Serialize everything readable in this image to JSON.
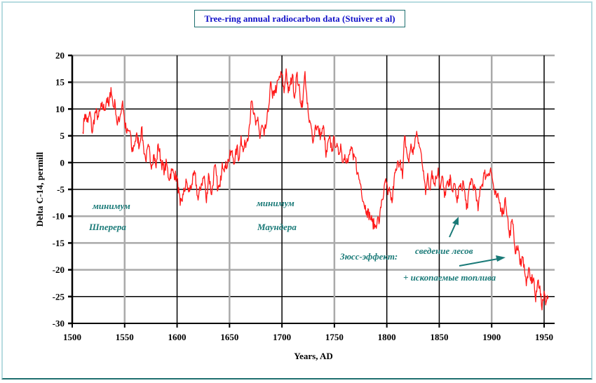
{
  "colors": {
    "series": "#ff1a1a",
    "annotation": "#1a7a78",
    "title": "#1010c8",
    "grid_dark": "#000000",
    "grid_light": "#aaaaaa"
  },
  "chart_data": {
    "type": "line",
    "title": "Tree-ring annual radiocarbon data (Stuiver et al)",
    "xlabel": "Years, AD",
    "ylabel": "Delta C-14, permill",
    "xlim": [
      1500,
      1960
    ],
    "ylim": [
      -30,
      20
    ],
    "x_ticks": [
      "1500",
      "1550",
      "1600",
      "1650",
      "1700",
      "1750",
      "1800",
      "1850",
      "1900",
      "1950"
    ],
    "y_ticks": [
      "20",
      "15",
      "10",
      "5",
      "0",
      "-5",
      "-10",
      "-15",
      "-20",
      "-25",
      "-30"
    ],
    "grid": true,
    "legend": "none",
    "series": [
      {
        "name": "Delta C-14",
        "x": [
          1510,
          1512,
          1515,
          1517,
          1519,
          1522,
          1525,
          1528,
          1531,
          1533,
          1535,
          1537,
          1539,
          1541,
          1543,
          1546,
          1548,
          1550,
          1552,
          1555,
          1557,
          1560,
          1562,
          1564,
          1566,
          1568,
          1570,
          1573,
          1575,
          1578,
          1580,
          1582,
          1585,
          1588,
          1590,
          1592,
          1595,
          1597,
          1600,
          1603,
          1606,
          1609,
          1611,
          1614,
          1617,
          1620,
          1623,
          1626,
          1628,
          1630,
          1633,
          1636,
          1639,
          1641,
          1643,
          1646,
          1649,
          1652,
          1655,
          1657,
          1659,
          1661,
          1663,
          1665,
          1667,
          1669,
          1671,
          1673,
          1675,
          1677,
          1679,
          1681,
          1683,
          1685,
          1687,
          1689,
          1691,
          1693,
          1695,
          1697,
          1700,
          1702,
          1704,
          1706,
          1708,
          1710,
          1712,
          1714,
          1716,
          1718,
          1720,
          1722,
          1724,
          1726,
          1728,
          1730,
          1732,
          1735,
          1737,
          1740,
          1742,
          1745,
          1748,
          1750,
          1752,
          1754,
          1756,
          1758,
          1760,
          1763,
          1766,
          1768,
          1770,
          1772,
          1775,
          1778,
          1781,
          1784,
          1786,
          1789,
          1791,
          1793,
          1795,
          1797,
          1799,
          1801,
          1803,
          1805,
          1807,
          1809,
          1811,
          1813,
          1815,
          1817,
          1819,
          1821,
          1823,
          1825,
          1827,
          1829,
          1831,
          1833,
          1835,
          1837,
          1839,
          1841,
          1843,
          1845,
          1847,
          1849,
          1851,
          1853,
          1855,
          1857,
          1859,
          1861,
          1863,
          1865,
          1867,
          1869,
          1871,
          1873,
          1875,
          1877,
          1879,
          1881,
          1883,
          1885,
          1887,
          1889,
          1891,
          1893,
          1895,
          1897,
          1899,
          1901,
          1903,
          1905,
          1907,
          1909,
          1911,
          1913,
          1915,
          1917,
          1919,
          1921,
          1923,
          1925,
          1927,
          1929,
          1931,
          1933,
          1935,
          1937,
          1940,
          1942,
          1944,
          1946,
          1948,
          1950,
          1952,
          1954
        ],
        "y": [
          5.7,
          9,
          7.5,
          9.5,
          5.5,
          9.5,
          8.5,
          10.5,
          10,
          12,
          10.5,
          14,
          10.5,
          11,
          7,
          9,
          11.5,
          7.5,
          5.5,
          6,
          2,
          4,
          5,
          3,
          6.5,
          3,
          0.5,
          3,
          -0.5,
          1.5,
          -1,
          3.5,
          0,
          -1.5,
          0,
          -3,
          -1.5,
          -2,
          -3,
          -8,
          -6,
          -3.5,
          -5.5,
          -4,
          -2,
          -7,
          -4,
          -2.5,
          -7.5,
          -2,
          -6,
          -0.5,
          -5,
          -4.5,
          0,
          -1,
          0.5,
          2,
          0,
          3,
          0.5,
          5,
          2,
          3.5,
          4.5,
          7,
          11.5,
          9,
          7,
          8.5,
          4.5,
          7,
          5,
          7,
          9.5,
          15,
          12,
          13.5,
          14,
          15.5,
          16.5,
          13,
          17.5,
          13,
          14.5,
          16.5,
          12,
          16.5,
          14.5,
          11,
          11.5,
          17,
          11,
          7.5,
          6.5,
          4,
          7,
          6,
          5,
          6.5,
          1,
          4.5,
          2.5,
          4.5,
          3,
          1.5,
          3.5,
          0,
          1.5,
          0,
          3,
          0.5,
          1,
          -2,
          -4,
          -7.5,
          -9,
          -10,
          -11,
          -12,
          -10.5,
          -11,
          -7,
          -6,
          -3,
          -6,
          -5.5,
          -7.5,
          -3,
          -1.5,
          0,
          0.5,
          -3,
          5,
          2,
          0,
          3.5,
          1.5,
          4.5,
          5,
          3,
          1.5,
          -1.5,
          -6,
          -2,
          -5,
          -1.5,
          -4,
          -3,
          -1,
          -5,
          -2.5,
          -6.5,
          -4,
          -4.5,
          -3,
          -5.5,
          -4,
          -7.5,
          -4.5,
          -5,
          -3.5,
          -7,
          -8.5,
          -4,
          -3,
          -4.5,
          -6,
          -9,
          -4.5,
          -4,
          -2,
          -2.5,
          -2,
          -1,
          -3.5,
          -6,
          -6.5,
          -7,
          -8.5,
          -9.5,
          -6.5,
          -10,
          -14,
          -11,
          -13,
          -17,
          -15.5,
          -19,
          -17.5,
          -19,
          -23,
          -20,
          -22,
          -21.5,
          -26,
          -22,
          -23,
          -27.5,
          -24,
          -26,
          -25
        ]
      }
    ],
    "annotations": [
      {
        "id": "spoerer-1",
        "text": "минимум"
      },
      {
        "id": "spoerer-2",
        "text": "Шперера"
      },
      {
        "id": "maunder-1",
        "text": "минимум"
      },
      {
        "id": "maunder-2",
        "text": "Маундера"
      },
      {
        "id": "suess",
        "text": "Зюсс-эффект:"
      },
      {
        "id": "deforest",
        "text": "сведение лесов"
      },
      {
        "id": "fossil",
        "text": "+ ископаемые топлива"
      }
    ]
  }
}
